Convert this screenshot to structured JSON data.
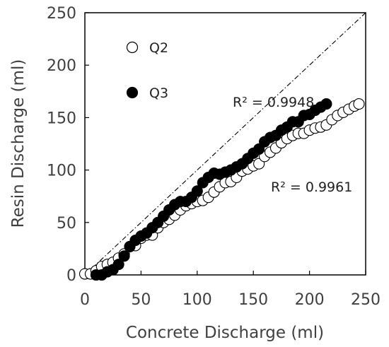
{
  "chart_data": {
    "type": "scatter",
    "title": "",
    "xlabel": "Concrete Discharge (ml)",
    "ylabel": "Resin Discharge (ml)",
    "xlim": [
      0,
      250
    ],
    "ylim": [
      0,
      250
    ],
    "xticks": [
      0,
      50,
      100,
      150,
      200,
      250
    ],
    "yticks": [
      0,
      50,
      100,
      150,
      200,
      250
    ],
    "grid": false,
    "legend_position": "top-left",
    "reference_line": {
      "style": "dash-dot",
      "x": [
        0,
        250
      ],
      "y": [
        0,
        250
      ]
    },
    "series": [
      {
        "name": "Q2",
        "marker": "open-circle",
        "color": "#000000",
        "x": [
          0,
          5,
          10,
          15,
          20,
          25,
          30,
          35,
          40,
          45,
          50,
          55,
          60,
          65,
          70,
          75,
          80,
          85,
          90,
          95,
          100,
          105,
          110,
          115,
          120,
          125,
          130,
          135,
          140,
          145,
          150,
          155,
          160,
          165,
          170,
          175,
          180,
          185,
          190,
          195,
          200,
          205,
          210,
          215,
          220,
          225,
          230,
          235,
          240,
          244
        ],
        "y": [
          1,
          1,
          4,
          8,
          10,
          12,
          16,
          20,
          27,
          28,
          35,
          38,
          38,
          45,
          50,
          53,
          57,
          62,
          66,
          68,
          70,
          71,
          74,
          79,
          84,
          88,
          89,
          93,
          99,
          101,
          104,
          106,
          113,
          117,
          121,
          126,
          130,
          133,
          135,
          135,
          138,
          140,
          141,
          143,
          148,
          152,
          155,
          158,
          161,
          163
        ]
      },
      {
        "name": "Q3",
        "marker": "filled-circle",
        "color": "#000000",
        "x": [
          10,
          15,
          20,
          25,
          30,
          35,
          40,
          45,
          50,
          55,
          60,
          65,
          70,
          75,
          80,
          85,
          90,
          95,
          100,
          105,
          110,
          115,
          120,
          125,
          130,
          135,
          140,
          145,
          150,
          155,
          160,
          165,
          170,
          175,
          180,
          185,
          190,
          195,
          200,
          205,
          210,
          215
        ],
        "y": [
          0,
          0,
          3,
          5,
          10,
          18,
          27,
          33,
          37,
          40,
          45,
          50,
          56,
          62,
          67,
          70,
          70,
          74,
          80,
          88,
          93,
          97,
          96,
          98,
          100,
          103,
          106,
          111,
          116,
          120,
          127,
          131,
          133,
          138,
          141,
          146,
          146,
          152,
          153,
          157,
          160,
          163
        ]
      }
    ],
    "annotations": [
      {
        "text": "R² = 0.9948"
      },
      {
        "text": "R² = 0.9961"
      }
    ]
  }
}
